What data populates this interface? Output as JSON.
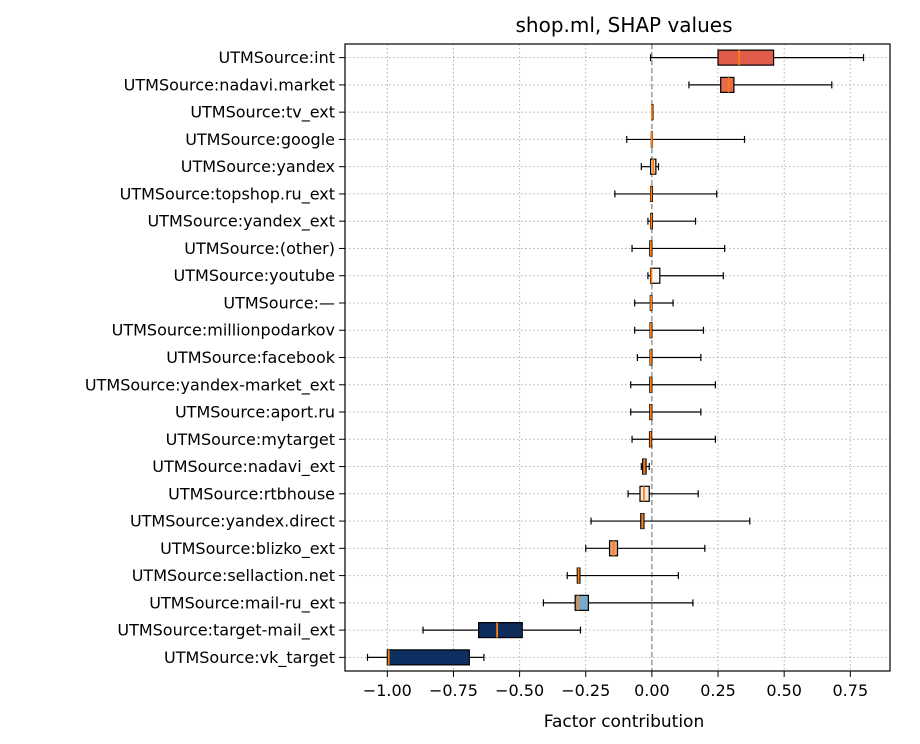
{
  "chart_data": {
    "type": "boxplot",
    "orientation": "horizontal",
    "title": "shop.ml, SHAP values",
    "xlabel": "Factor contribution",
    "ylabel": "",
    "xlim": [
      -1.16,
      0.9
    ],
    "xticks": [
      -1.0,
      -0.75,
      -0.5,
      -0.25,
      0.0,
      0.25,
      0.5,
      0.75
    ],
    "xtick_labels": [
      "−1.00",
      "−0.75",
      "−0.50",
      "−0.25",
      "0.00",
      "0.25",
      "0.50",
      "0.75"
    ],
    "grid": true,
    "reference_line_x": 0,
    "colors": {
      "median": "#ff7f0e",
      "whisker": "#000000",
      "grid": "#b0b0b0",
      "reference": "#808080"
    },
    "items": [
      {
        "label": "UTMSource:int",
        "whislo": -0.005,
        "q1": 0.25,
        "med": 0.33,
        "q3": 0.46,
        "whishi": 0.8,
        "color": "#e05c4b"
      },
      {
        "label": "UTMSource:nadavi.market",
        "whislo": 0.14,
        "q1": 0.26,
        "med": 0.29,
        "q3": 0.31,
        "whishi": 0.68,
        "color": "#e86a4e"
      },
      {
        "label": "UTMSource:tv_ext",
        "whislo": 0.0,
        "q1": 0.0,
        "med": 0.0,
        "q3": 0.0,
        "whishi": 0.0,
        "color": "#f2f2f2"
      },
      {
        "label": "UTMSource:google",
        "whislo": -0.095,
        "q1": -0.002,
        "med": 0.0,
        "q3": 0.002,
        "whishi": 0.35,
        "color": "#f0f0f0"
      },
      {
        "label": "UTMSource:yandex",
        "whislo": -0.04,
        "q1": -0.005,
        "med": 0.005,
        "q3": 0.015,
        "whishi": 0.025,
        "color": "#f7d6c5"
      },
      {
        "label": "UTMSource:topshop.ru_ext",
        "whislo": -0.14,
        "q1": -0.005,
        "med": -0.002,
        "q3": 0.002,
        "whishi": 0.245,
        "color": "#efefef"
      },
      {
        "label": "UTMSource:yandex_ext",
        "whislo": -0.015,
        "q1": -0.005,
        "med": -0.002,
        "q3": 0.002,
        "whishi": 0.165,
        "color": "#efefef"
      },
      {
        "label": "UTMSource:(other)",
        "whislo": -0.075,
        "q1": -0.008,
        "med": -0.004,
        "q3": 0.0,
        "whishi": 0.275,
        "color": "#eeeeee"
      },
      {
        "label": "UTMSource:youtube",
        "whislo": -0.015,
        "q1": -0.005,
        "med": -0.002,
        "q3": 0.03,
        "whishi": 0.27,
        "color": "#fbf5f1"
      },
      {
        "label": "UTMSource:—",
        "whislo": -0.065,
        "q1": -0.006,
        "med": -0.003,
        "q3": 0.0,
        "whishi": 0.08,
        "color": "#eeeeee"
      },
      {
        "label": "UTMSource:millionpodarkov",
        "whislo": -0.065,
        "q1": -0.007,
        "med": -0.004,
        "q3": 0.0,
        "whishi": 0.195,
        "color": "#eeeeee"
      },
      {
        "label": "UTMSource:facebook",
        "whislo": -0.055,
        "q1": -0.007,
        "med": -0.004,
        "q3": 0.0,
        "whishi": 0.185,
        "color": "#eeeeee"
      },
      {
        "label": "UTMSource:yandex-market_ext",
        "whislo": -0.08,
        "q1": -0.008,
        "med": -0.004,
        "q3": 0.0,
        "whishi": 0.24,
        "color": "#eeeeee"
      },
      {
        "label": "UTMSource:aport.ru",
        "whislo": -0.08,
        "q1": -0.008,
        "med": -0.004,
        "q3": 0.0,
        "whishi": 0.185,
        "color": "#eeeeee"
      },
      {
        "label": "UTMSource:mytarget",
        "whislo": -0.075,
        "q1": -0.009,
        "med": -0.005,
        "q3": -0.001,
        "whishi": 0.24,
        "color": "#eeeeee"
      },
      {
        "label": "UTMSource:nadavi_ext",
        "whislo": -0.04,
        "q1": -0.035,
        "med": -0.028,
        "q3": -0.022,
        "whishi": -0.01,
        "color": "#e77b5f"
      },
      {
        "label": "UTMSource:rtbhouse",
        "whislo": -0.09,
        "q1": -0.045,
        "med": -0.03,
        "q3": -0.01,
        "whishi": 0.175,
        "color": "#f6e7df"
      },
      {
        "label": "UTMSource:yandex.direct",
        "whislo": -0.23,
        "q1": -0.042,
        "med": -0.036,
        "q3": -0.03,
        "whishi": 0.37,
        "color": "#eeeeee"
      },
      {
        "label": "UTMSource:blizko_ext",
        "whislo": -0.25,
        "q1": -0.16,
        "med": -0.145,
        "q3": -0.13,
        "whishi": 0.2,
        "color": "#e8a282"
      },
      {
        "label": "UTMSource:sellaction.net",
        "whislo": -0.32,
        "q1": -0.282,
        "med": -0.277,
        "q3": -0.272,
        "whishi": 0.1,
        "color": "#f2f2f2"
      },
      {
        "label": "UTMSource:mail-ru_ext",
        "whislo": -0.41,
        "q1": -0.29,
        "med": -0.28,
        "q3": -0.24,
        "whishi": 0.155,
        "color": "#79a9cb"
      },
      {
        "label": "UTMSource:target-mail_ext",
        "whislo": -0.865,
        "q1": -0.655,
        "med": -0.585,
        "q3": -0.49,
        "whishi": -0.27,
        "color": "#0d2c5c"
      },
      {
        "label": "UTMSource:vk_target",
        "whislo": -1.075,
        "q1": -1.0,
        "med": -0.995,
        "q3": -0.69,
        "whishi": -0.635,
        "color": "#0e2f61"
      }
    ]
  }
}
